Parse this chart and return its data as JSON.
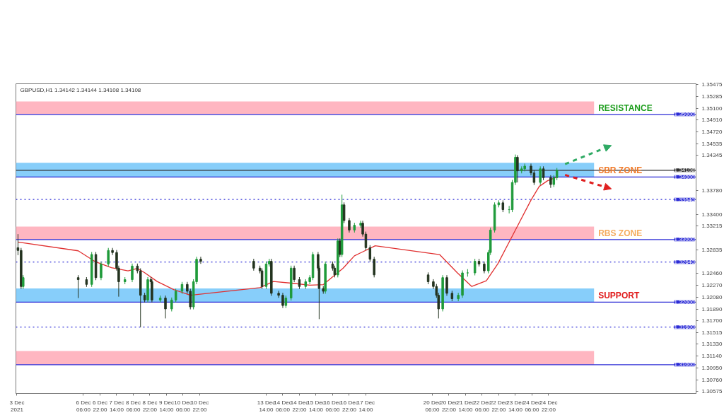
{
  "chart_data": {
    "type": "candlestick",
    "title": "GBPUSD,H1 1.34142 1.34144 1.34108 1.34108",
    "x": [
      "2021-12-03T15:00",
      "2021-12-03T18:00",
      "2021-12-03T20:00",
      "2021-12-06T01:00",
      "2021-12-06T09:00",
      "2021-12-06T14:00",
      "2021-12-06T18:00",
      "2021-12-06T23:00",
      "2021-12-07T06:00",
      "2021-12-07T10:00",
      "2021-12-07T14:00",
      "2021-12-07T16:00",
      "2021-12-07T22:00",
      "2021-12-08T05:00",
      "2021-12-08T10:00",
      "2021-12-08T13:00",
      "2021-12-08T17:00",
      "2021-12-08T20:00",
      "2021-12-08T23:00",
      "2021-12-09T00:00",
      "2021-12-09T08:00",
      "2021-12-09T13:00",
      "2021-12-09T19:00",
      "2021-12-09T23:00",
      "2021-12-10T05:00",
      "2021-12-10T10:00",
      "2021-12-10T13:00",
      "2021-12-10T16:00",
      "2021-12-10T19:00",
      "2021-12-10T23:00",
      "2021-12-13T02:00",
      "2021-12-13T08:00",
      "2021-12-13T10:00",
      "2021-12-13T14:00",
      "2021-12-13T17:00",
      "2021-12-13T19:00",
      "2021-12-14T02:00",
      "2021-12-14T06:00",
      "2021-12-14T09:00",
      "2021-12-14T14:00",
      "2021-12-14T17:00",
      "2021-12-14T22:00",
      "2021-12-15T04:00",
      "2021-12-15T08:00",
      "2021-12-15T11:00",
      "2021-12-15T16:00",
      "2021-12-15T17:00",
      "2021-12-15T21:00",
      "2021-12-15T23:00",
      "2021-12-16T06:00",
      "2021-12-16T08:00",
      "2021-12-16T11:00",
      "2021-12-16T13:00",
      "2021-12-16T15:00",
      "2021-12-16T17:00",
      "2021-12-16T22:00",
      "2021-12-17T03:00",
      "2021-12-17T09:00",
      "2021-12-17T11:00",
      "2021-12-17T14:00",
      "2021-12-17T18:00",
      "2021-12-17T22:00",
      "2021-12-20T02:00",
      "2021-12-20T07:00",
      "2021-12-20T10:00",
      "2021-12-20T12:00",
      "2021-12-20T16:00",
      "2021-12-20T20:00",
      "2021-12-21T01:00",
      "2021-12-21T07:00",
      "2021-12-21T11:00",
      "2021-12-21T16:00",
      "2021-12-21T23:00",
      "2021-12-22T03:00",
      "2021-12-22T08:00",
      "2021-12-22T12:00",
      "2021-12-22T14:00",
      "2021-12-22T18:00",
      "2021-12-22T22:00",
      "2021-12-23T02:00",
      "2021-12-23T08:00",
      "2021-12-23T11:00",
      "2021-12-23T14:00",
      "2021-12-23T16:00",
      "2021-12-23T20:00",
      "2021-12-23T23:00",
      "2021-12-24T05:00",
      "2021-12-24T08:00",
      "2021-12-24T14:00",
      "2021-12-24T17:00",
      "2021-12-25T00:00",
      "2021-12-25T03:00",
      "2021-12-25T06:00"
    ],
    "ohlc": [
      [
        1.3287,
        1.33087,
        1.3275,
        1.32826
      ],
      [
        1.32826,
        1.32866,
        1.3221,
        1.3225
      ],
      [
        1.3225,
        1.32431,
        1.3221,
        1.32391
      ],
      [
        1.32391,
        1.32431,
        1.32065,
        1.32359
      ],
      [
        1.32359,
        1.32399,
        1.32243,
        1.32283
      ],
      [
        1.32283,
        1.32801,
        1.32243,
        1.32761
      ],
      [
        1.32761,
        1.32801,
        1.32351,
        1.32391
      ],
      [
        1.32391,
        1.32649,
        1.32351,
        1.32609
      ],
      [
        1.32609,
        1.32866,
        1.32569,
        1.32826
      ],
      [
        1.32826,
        1.32866,
        1.32753,
        1.32793
      ],
      [
        1.32793,
        1.32833,
        1.32503,
        1.32543
      ],
      [
        1.32543,
        1.32583,
        1.32087,
        1.32326
      ],
      [
        1.32326,
        1.32399,
        1.32286,
        1.32359
      ],
      [
        1.32359,
        1.32616,
        1.32319,
        1.32576
      ],
      [
        1.32576,
        1.32616,
        1.3246,
        1.325
      ],
      [
        1.325,
        1.3254,
        1.31598,
        1.32109
      ],
      [
        1.32109,
        1.32149,
        1.31993,
        1.32033
      ],
      [
        1.32033,
        1.32399,
        1.31993,
        1.32359
      ],
      [
        1.32359,
        1.32399,
        1.32286,
        1.32326
      ],
      [
        1.32326,
        1.32366,
        1.31993,
        1.32033
      ],
      [
        1.32033,
        1.32105,
        1.31993,
        1.32065
      ],
      [
        1.32065,
        1.32105,
        1.31739,
        1.31891
      ],
      [
        1.31891,
        1.32073,
        1.31851,
        1.32033
      ],
      [
        1.32033,
        1.32214,
        1.31993,
        1.32174
      ],
      [
        1.32174,
        1.32323,
        1.32134,
        1.32283
      ],
      [
        1.32283,
        1.32323,
        1.32134,
        1.32174
      ],
      [
        1.32174,
        1.32214,
        1.31884,
        1.31924
      ],
      [
        1.31924,
        1.32366,
        1.31884,
        1.32326
      ],
      [
        1.32326,
        1.32725,
        1.32286,
        1.32685
      ],
      [
        1.32685,
        1.32725,
        1.32612,
        1.32652
      ],
      [
        1.32652,
        1.32692,
        1.32503,
        1.32543
      ],
      [
        1.32543,
        1.32583,
        1.3246,
        1.325
      ],
      [
        1.325,
        1.3254,
        1.3221,
        1.3225
      ],
      [
        1.3225,
        1.32649,
        1.3221,
        1.32609
      ],
      [
        1.32609,
        1.32692,
        1.32569,
        1.32652
      ],
      [
        1.32652,
        1.32692,
        1.32101,
        1.32141
      ],
      [
        1.32141,
        1.32181,
        1.32069,
        1.32109
      ],
      [
        1.32109,
        1.32149,
        1.31906,
        1.31946
      ],
      [
        1.31946,
        1.32105,
        1.31906,
        1.32065
      ],
      [
        1.32065,
        1.32583,
        1.32025,
        1.32543
      ],
      [
        1.32543,
        1.32583,
        1.32319,
        1.32359
      ],
      [
        1.32359,
        1.32399,
        1.3221,
        1.3225
      ],
      [
        1.3225,
        1.32366,
        1.3221,
        1.32326
      ],
      [
        1.32326,
        1.32431,
        1.32286,
        1.32391
      ],
      [
        1.32391,
        1.32801,
        1.32351,
        1.32761
      ],
      [
        1.32761,
        1.32801,
        1.32503,
        1.32543
      ],
      [
        1.32543,
        1.32583,
        1.31728,
        1.32217
      ],
      [
        1.32217,
        1.32257,
        1.32134,
        1.32174
      ],
      [
        1.32174,
        1.32649,
        1.32134,
        1.32609
      ],
      [
        1.32609,
        1.32649,
        1.32503,
        1.32543
      ],
      [
        1.32543,
        1.32583,
        1.32395,
        1.32435
      ],
      [
        1.32435,
        1.33018,
        1.32395,
        1.32978
      ],
      [
        1.32978,
        1.33018,
        1.32721,
        1.32761
      ],
      [
        1.32761,
        1.33717,
        1.32721,
        1.33554
      ],
      [
        1.33554,
        1.33594,
        1.33264,
        1.33304
      ],
      [
        1.33304,
        1.33344,
        1.33112,
        1.33152
      ],
      [
        1.33152,
        1.33268,
        1.33112,
        1.33228
      ],
      [
        1.33228,
        1.33301,
        1.33188,
        1.33261
      ],
      [
        1.33261,
        1.33301,
        1.33047,
        1.33087
      ],
      [
        1.33087,
        1.33127,
        1.3283,
        1.3287
      ],
      [
        1.3287,
        1.3291,
        1.32645,
        1.32685
      ],
      [
        1.32685,
        1.32725,
        1.32395,
        1.32435
      ],
      [
        1.32435,
        1.32475,
        1.32286,
        1.32326
      ],
      [
        1.32326,
        1.32366,
        1.3221,
        1.3225
      ],
      [
        1.3225,
        1.3229,
        1.32069,
        1.32109
      ],
      [
        1.32109,
        1.32149,
        1.31739,
        1.31891
      ],
      [
        1.31891,
        1.32431,
        1.31851,
        1.32391
      ],
      [
        1.32391,
        1.32431,
        1.32101,
        1.32141
      ],
      [
        1.32141,
        1.32181,
        1.32014,
        1.32054
      ],
      [
        1.32054,
        1.32149,
        1.32014,
        1.32109
      ],
      [
        1.32109,
        1.32507,
        1.32069,
        1.32467
      ],
      [
        1.32467,
        1.32527,
        1.32407,
        1.32467
      ],
      [
        1.32467,
        1.32692,
        1.32427,
        1.32652
      ],
      [
        1.32652,
        1.32692,
        1.32569,
        1.32609
      ],
      [
        1.32609,
        1.32649,
        1.3246,
        1.325
      ],
      [
        1.325,
        1.32833,
        1.3246,
        1.32793
      ],
      [
        1.32793,
        1.33192,
        1.32753,
        1.33152
      ],
      [
        1.33152,
        1.33594,
        1.33112,
        1.33554
      ],
      [
        1.33554,
        1.33627,
        1.33514,
        1.33587
      ],
      [
        1.33587,
        1.33627,
        1.33438,
        1.33478
      ],
      [
        1.33478,
        1.33538,
        1.33418,
        1.33478
      ],
      [
        1.33478,
        1.33953,
        1.33438,
        1.33913
      ],
      [
        1.33913,
        1.34359,
        1.33873,
        1.34315
      ],
      [
        1.34315,
        1.34348,
        1.33913,
        1.34098
      ],
      [
        1.34098,
        1.3417,
        1.34058,
        1.3413
      ],
      [
        1.3413,
        1.34214,
        1.3409,
        1.34174
      ],
      [
        1.34174,
        1.34214,
        1.34025,
        1.34065
      ],
      [
        1.34065,
        1.34105,
        1.33873,
        1.33913
      ],
      [
        1.33913,
        1.3417,
        1.33873,
        1.3413
      ],
      [
        1.3413,
        1.3417,
        1.33949,
        1.33989
      ],
      [
        1.33989,
        1.34029,
        1.33826,
        1.3388
      ],
      [
        1.3388,
        1.34029,
        1.3384,
        1.33989
      ],
      [
        1.33989,
        1.34144,
        1.33949,
        1.34108
      ]
    ],
    "series": [
      {
        "type": "line",
        "color": "#e03030",
        "x": [
          "2021-12-03T15:00",
          "2021-12-06T01:00",
          "2021-12-06T17:00",
          "2021-12-07T09:00",
          "2021-12-08T01:00",
          "2021-12-08T10:00",
          "2021-12-08T17:00",
          "2021-12-09T05:00",
          "2021-12-09T21:00",
          "2021-12-10T13:00",
          "2021-12-13T08:00",
          "2021-12-13T21:00",
          "2021-12-14T16:00",
          "2021-12-15T08:00",
          "2021-12-15T21:00",
          "2021-12-16T16:00",
          "2021-12-17T03:00",
          "2021-12-17T23:00",
          "2021-12-20T13:00",
          "2021-12-21T06:00",
          "2021-12-21T20:00",
          "2021-12-22T10:00",
          "2021-12-22T21:00",
          "2021-12-23T13:00",
          "2021-12-24T05:00",
          "2021-12-24T13:00",
          "2021-12-24T21:00",
          "2021-12-25T05:00"
        ],
        "values": [
          1.3296,
          1.3282,
          1.3265,
          1.3255,
          1.325,
          1.3254,
          1.3247,
          1.3233,
          1.322,
          1.3211,
          1.3223,
          1.3233,
          1.323,
          1.3227,
          1.3228,
          1.3254,
          1.3274,
          1.329,
          1.3276,
          1.3247,
          1.3225,
          1.3234,
          1.3261,
          1.3312,
          1.3363,
          1.3385,
          1.3394,
          1.3399
        ]
      }
    ],
    "xlim": [
      "2021-12-03T13:00",
      "2021-12-30T20:00"
    ],
    "xticks": [
      {
        "value": "2021-12-03T14:00",
        "label": "3 Dec 2021"
      },
      {
        "value": "2021-12-06T06:00",
        "label": "6 Dec 06:00"
      },
      {
        "value": "2021-12-06T22:00",
        "label": "6 Dec 22:00"
      },
      {
        "value": "2021-12-07T14:00",
        "label": "7 Dec 14:00"
      },
      {
        "value": "2021-12-08T06:00",
        "label": "8 Dec 06:00"
      },
      {
        "value": "2021-12-08T22:00",
        "label": "8 Dec 22:00"
      },
      {
        "value": "2021-12-09T14:00",
        "label": "9 Dec 14:00"
      },
      {
        "value": "2021-12-10T06:00",
        "label": "10 Dec 06:00"
      },
      {
        "value": "2021-12-10T22:00",
        "label": "10 Dec 22:00"
      },
      {
        "value": "2021-12-13T14:00",
        "label": "13 Dec 14:00"
      },
      {
        "value": "2021-12-14T06:00",
        "label": "14 Dec 06:00"
      },
      {
        "value": "2021-12-14T22:00",
        "label": "14 Dec 22:00"
      },
      {
        "value": "2021-12-15T14:00",
        "label": "15 Dec 14:00"
      },
      {
        "value": "2021-12-16T06:00",
        "label": "16 Dec 06:00"
      },
      {
        "value": "2021-12-16T22:00",
        "label": "16 Dec 22:00"
      },
      {
        "value": "2021-12-17T14:00",
        "label": "17 Dec 14:00"
      },
      {
        "value": "2021-12-20T06:00",
        "label": "20 Dec 06:00"
      },
      {
        "value": "2021-12-20T22:00",
        "label": "20 Dec 22:00"
      },
      {
        "value": "2021-12-21T14:00",
        "label": "21 Dec 14:00"
      },
      {
        "value": "2021-12-22T06:00",
        "label": "22 Dec 06:00"
      },
      {
        "value": "2021-12-22T22:00",
        "label": "22 Dec 22:00"
      },
      {
        "value": "2021-12-23T14:00",
        "label": "23 Dec 14:00"
      },
      {
        "value": "2021-12-24T06:00",
        "label": "24 Dec 06:00"
      },
      {
        "value": "2021-12-24T22:00",
        "label": "24 Dec 22:00"
      }
    ],
    "ylim": [
      1.3054,
      1.3549
    ],
    "yticks": [
      {
        "value": 1.35475,
        "label": "1.35475"
      },
      {
        "value": 1.35285,
        "label": "1.35285"
      },
      {
        "value": 1.351,
        "label": "1.35100"
      },
      {
        "value": 1.3491,
        "label": "1.34910"
      },
      {
        "value": 1.3472,
        "label": "1.34720"
      },
      {
        "value": 1.34535,
        "label": "1.34535"
      },
      {
        "value": 1.34345,
        "label": "1.34345"
      },
      {
        "value": 1.3378,
        "label": "1.33780"
      },
      {
        "value": 1.334,
        "label": "1.33400"
      },
      {
        "value": 1.33215,
        "label": "1.33215"
      },
      {
        "value": 1.32835,
        "label": "1.32835"
      },
      {
        "value": 1.3246,
        "label": "1.32460"
      },
      {
        "value": 1.3227,
        "label": "1.32270"
      },
      {
        "value": 1.3208,
        "label": "1.32080"
      },
      {
        "value": 1.3189,
        "label": "1.31890"
      },
      {
        "value": 1.317,
        "label": "1.31700"
      },
      {
        "value": 1.31515,
        "label": "1.31515"
      },
      {
        "value": 1.3133,
        "label": "1.31330"
      },
      {
        "value": 1.3114,
        "label": "1.31140"
      },
      {
        "value": 1.3095,
        "label": "1.30950"
      },
      {
        "value": 1.3076,
        "label": "1.30760"
      },
      {
        "value": 1.30575,
        "label": "1.30575"
      }
    ],
    "bands": [
      {
        "axis": "y",
        "from": 1.35,
        "to": 1.35207,
        "label": "RESISTANCE",
        "color": "#ffb6c1"
      },
      {
        "axis": "y",
        "from": 1.34,
        "to": 1.34228,
        "label": "SBR ZONE",
        "color": "#87cefa"
      },
      {
        "axis": "y",
        "from": 1.33,
        "to": 1.33207,
        "label": "RBS ZONE",
        "color": "#ffb6c1"
      },
      {
        "axis": "y",
        "from": 1.32,
        "to": 1.32217,
        "label": "SUPPORT",
        "color": "#87cefa"
      },
      {
        "axis": "y",
        "from": 1.31,
        "to": 1.31217,
        "color": "#ffb6c1"
      }
    ],
    "ref_lines": [
      {
        "axis": "y",
        "value": 1.35,
        "label": "1.35000",
        "color": "#2b2bd6",
        "line_style": "solid"
      },
      {
        "axis": "y",
        "value": 1.34,
        "label": "1.34000",
        "color": "#2b2bd6",
        "line_style": "solid"
      },
      {
        "axis": "y",
        "value": 1.33,
        "label": "1.33000",
        "color": "#2b2bd6",
        "line_style": "solid"
      },
      {
        "axis": "y",
        "value": 1.32,
        "label": "1.32000",
        "color": "#2b2bd6",
        "line_style": "solid"
      },
      {
        "axis": "y",
        "value": 1.31,
        "label": "1.31000",
        "color": "#2b2bd6",
        "line_style": "solid"
      },
      {
        "axis": "y",
        "value": 1.3364,
        "label": "1.33640",
        "color": "#2b2bd6",
        "line_style": "dotted"
      },
      {
        "axis": "y",
        "value": 1.3264,
        "label": "1.32640",
        "color": "#2b2bd6",
        "line_style": "dotted"
      },
      {
        "axis": "y",
        "value": 1.316,
        "label": "1.31600",
        "color": "#2b2bd6",
        "line_style": "dotted"
      },
      {
        "axis": "y",
        "value": 1.34108,
        "label": "1.34108",
        "color": "#303030",
        "line_style": "solid"
      }
    ],
    "grid": false
  }
}
